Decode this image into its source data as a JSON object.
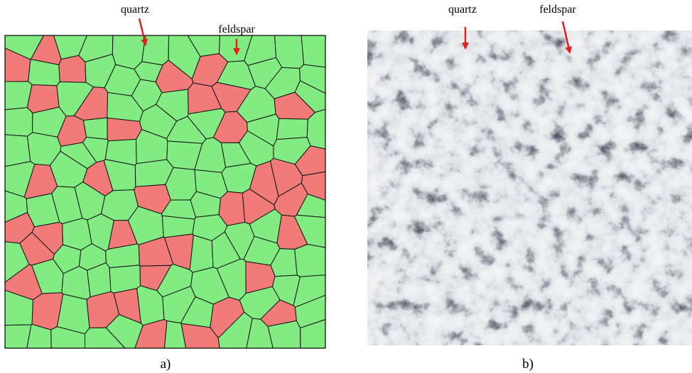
{
  "panels": [
    {
      "label": "a)",
      "annotations": [
        "quartz",
        "feldspar"
      ]
    },
    {
      "label": "b)",
      "annotations": [
        "quartz",
        "feldspar"
      ]
    }
  ]
}
